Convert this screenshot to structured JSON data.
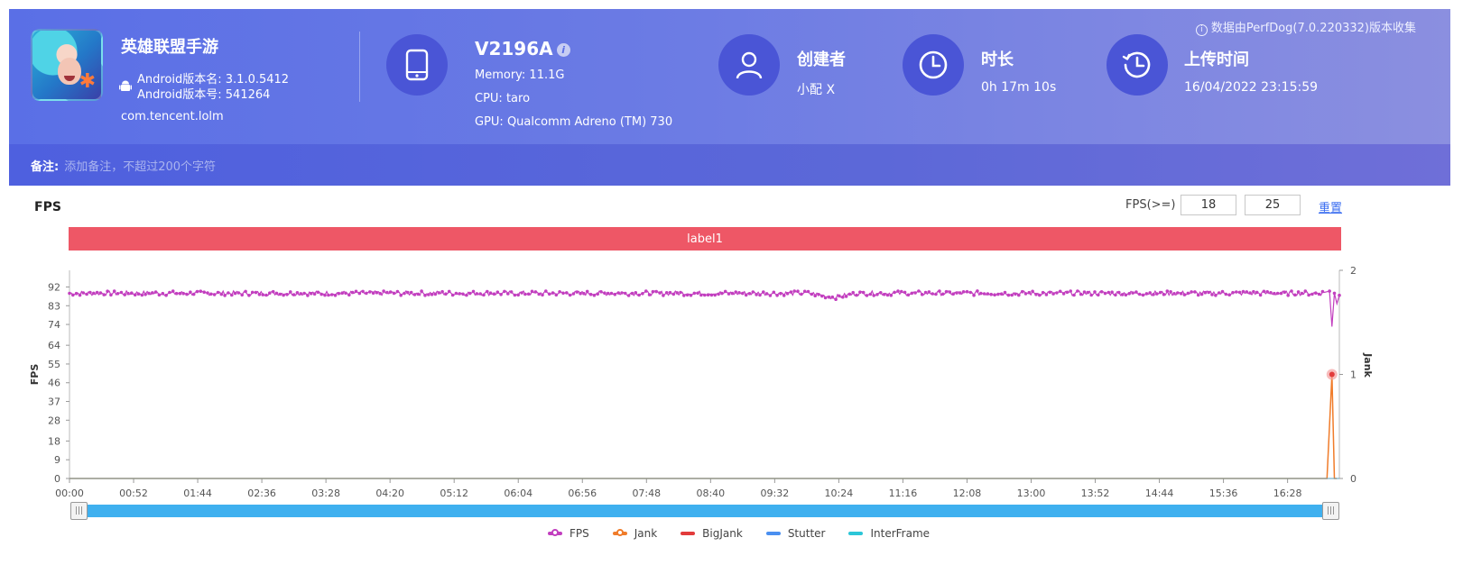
{
  "header": {
    "app": {
      "name": "英雄联盟手游",
      "version_name": "Android版本名: 3.1.0.5412",
      "version_code": "Android版本号: 541264",
      "package": "com.tencent.lolm"
    },
    "device": {
      "model": "V2196A",
      "info_glyph": "i",
      "memory": "Memory: 11.1G",
      "cpu": "CPU: taro",
      "gpu": "GPU: Qualcomm Adreno (TM) 730"
    },
    "creator": {
      "title": "创建者",
      "value": "小配 X"
    },
    "duration": {
      "title": "时长",
      "value": "0h 17m 10s"
    },
    "upload": {
      "title": "上传时间",
      "value": "16/04/2022 23:15:59"
    },
    "collect_note": "数据由PerfDog(7.0.220332)版本收集",
    "collect_glyph": "i",
    "note_label": "备注:",
    "note_placeholder": "添加备注，不超过200个字符"
  },
  "fps_panel": {
    "title": "FPS",
    "filter_label": "FPS(>=)",
    "filter_low": "18",
    "filter_high": "25",
    "reset_label": "重置",
    "label_bar": "label1",
    "slider_grip": "|||"
  },
  "colors": {
    "fps": "#c23fbf",
    "jank": "#f07c2a",
    "bigjank": "#e23b3b",
    "stutter": "#4a8ff0",
    "interframe": "#2cc6d8",
    "label_bar": "#ee5766"
  },
  "icons": {
    "device": "phone-icon",
    "creator": "user-icon",
    "duration": "clock-icon",
    "upload": "history-icon"
  },
  "chart_data": {
    "type": "line",
    "ylabel": "FPS",
    "y2label": "Jank",
    "y_ticks": [
      "0",
      "9",
      "18",
      "28",
      "37",
      "46",
      "55",
      "64",
      "74",
      "83",
      "92"
    ],
    "y_tick_values": [
      0,
      9,
      18,
      28,
      37,
      46,
      55,
      64,
      74,
      83,
      92
    ],
    "ylim": [
      0,
      100
    ],
    "y2_ticks": [
      "0",
      "1",
      "2"
    ],
    "y2lim": [
      0,
      2
    ],
    "x_ticks": [
      "00:00",
      "00:52",
      "01:44",
      "02:36",
      "03:28",
      "04:20",
      "05:12",
      "06:04",
      "06:56",
      "07:48",
      "08:40",
      "09:32",
      "10:24",
      "11:16",
      "12:08",
      "13:00",
      "13:52",
      "14:44",
      "15:36",
      "16:28"
    ],
    "x_tick_seconds": [
      0,
      52,
      104,
      156,
      208,
      260,
      312,
      364,
      416,
      468,
      520,
      572,
      624,
      676,
      728,
      780,
      832,
      884,
      936,
      988
    ],
    "xlim_seconds": [
      0,
      1030
    ],
    "series": [
      {
        "name": "FPS",
        "approx_level": 89,
        "x_seconds": [
          0,
          60,
          120,
          180,
          240,
          300,
          360,
          420,
          480,
          540,
          600,
          620,
          640,
          700,
          760,
          820,
          880,
          940,
          1000,
          1015,
          1022,
          1024,
          1026,
          1028,
          1030
        ],
        "values": [
          89,
          89,
          89,
          89,
          89,
          89,
          89,
          89,
          89,
          89,
          89,
          87,
          89,
          89,
          89,
          89,
          89,
          89,
          89,
          89,
          90,
          73,
          89,
          84,
          88
        ]
      },
      {
        "name": "Jank",
        "x_seconds": [
          0,
          1020,
          1024,
          1026,
          1028
        ],
        "values": [
          0,
          0,
          1,
          0,
          0
        ]
      },
      {
        "name": "BigJank",
        "x_seconds": [
          0,
          1030
        ],
        "values": [
          0,
          0
        ]
      },
      {
        "name": "Stutter",
        "x_seconds": [
          0,
          1030
        ],
        "values": [
          0,
          0
        ]
      },
      {
        "name": "InterFrame",
        "x_seconds": [
          0,
          1030
        ],
        "values": [
          0,
          0
        ]
      }
    ],
    "legend": [
      "FPS",
      "Jank",
      "BigJank",
      "Stutter",
      "InterFrame"
    ],
    "legend_position": "bottom-center"
  }
}
